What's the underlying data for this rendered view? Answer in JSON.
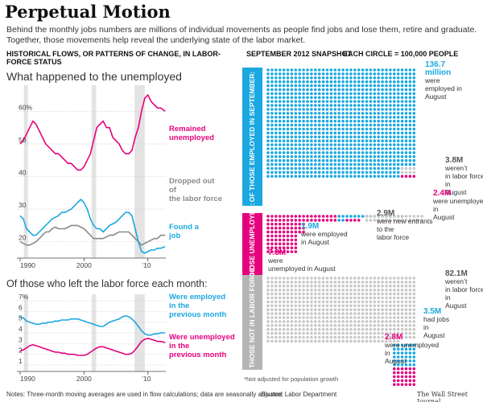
{
  "title": "Perpetual Motion",
  "intro": "Behind the monthly jobs numbers are millions of individual movements as people find jobs and lose them, retire and graduate. Together, those movements help reveal the underlying state of the labor market.",
  "left_header": "HISTORICAL FLOWS, OR PATTERNS OF CHANGE, IN LABOR-FORCE STATUS",
  "right_header": {
    "snapshot": "SEPTEMBER 2012 SNAPSHOT",
    "legend": "EACH CIRCLE = 100,000 PEOPLE"
  },
  "footer": {
    "notes": "Notes: Three-month moving averages are used in flow calculations; data are seasonally adjusted",
    "source": "Source: Labor Department",
    "credit": "The Wall Street Journal"
  },
  "colors": {
    "magenta": "#e5007d",
    "cyan": "#1ba8e0",
    "gray": "#8a8a8a",
    "light_gray": "#c8c8c8",
    "recession_shade": "#e3e3e3"
  },
  "chart_data": [
    {
      "type": "line",
      "title": "What happened to the unemployed",
      "x_ticks": [
        "1990",
        "2000",
        "’10"
      ],
      "y_ticks": [
        "20",
        "30",
        "40",
        "50",
        "60%"
      ],
      "ylim": [
        15,
        67
      ],
      "xlim": [
        1990,
        2012.8
      ],
      "grid": true,
      "recession_shading": [
        [
          1990.6,
          1991.2
        ],
        [
          2001.2,
          2001.9
        ],
        [
          2007.9,
          2009.5
        ]
      ],
      "series": [
        {
          "name": "Remained unemployed",
          "color": "#e5007d",
          "x": [
            1990,
            1990.5,
            1991,
            1991.5,
            1992,
            1992.5,
            1993,
            1993.5,
            1994,
            1994.5,
            1995,
            1995.5,
            1996,
            1996.5,
            1997,
            1997.5,
            1998,
            1998.5,
            1999,
            1999.5,
            2000,
            2000.5,
            2001,
            2001.5,
            2002,
            2002.5,
            2003,
            2003.5,
            2004,
            2004.5,
            2005,
            2005.5,
            2006,
            2006.5,
            2007,
            2007.5,
            2008,
            2008.5,
            2009,
            2009.5,
            2010,
            2010.5,
            2011,
            2011.5,
            2012,
            2012.7
          ],
          "y": [
            50,
            51,
            53,
            55,
            57,
            56,
            54,
            52,
            50,
            49,
            48,
            47,
            47,
            46,
            45,
            44,
            44,
            43,
            42,
            42,
            43,
            45,
            47,
            51,
            55,
            56,
            57,
            55,
            55,
            52,
            51,
            50,
            48,
            47,
            47,
            48,
            52,
            55,
            60,
            64,
            65,
            63,
            62,
            61,
            61,
            60
          ]
        },
        {
          "name": "Dropped out of the labor force",
          "color": "#8a8a8a",
          "x": [
            1990,
            1990.5,
            1991,
            1991.5,
            1992,
            1992.5,
            1993,
            1993.5,
            1994,
            1994.5,
            1995,
            1995.5,
            1996,
            1996.5,
            1997,
            1997.5,
            1998,
            1998.5,
            1999,
            1999.5,
            2000,
            2000.5,
            2001,
            2001.5,
            2002,
            2002.5,
            2003,
            2003.5,
            2004,
            2004.5,
            2005,
            2005.5,
            2006,
            2006.5,
            2007,
            2007.5,
            2008,
            2008.5,
            2009,
            2009.5,
            2010,
            2010.5,
            2011,
            2011.5,
            2012,
            2012.7
          ],
          "y": [
            20,
            19.5,
            19,
            19,
            19.5,
            20,
            21,
            22,
            23,
            23,
            24,
            24.5,
            24,
            24,
            24,
            24.5,
            25,
            25,
            25,
            24.5,
            24,
            23,
            22,
            21,
            21,
            21,
            21,
            21.5,
            22,
            22,
            22.5,
            23,
            23,
            23,
            23,
            22,
            21,
            20,
            19,
            19.5,
            20,
            20.5,
            21,
            21,
            22,
            22
          ]
        },
        {
          "name": "Found a job",
          "color": "#1ba8e0",
          "x": [
            1990,
            1990.5,
            1991,
            1991.5,
            1992,
            1992.5,
            1993,
            1993.5,
            1994,
            1994.5,
            1995,
            1995.5,
            1996,
            1996.5,
            1997,
            1997.5,
            1998,
            1998.5,
            1999,
            1999.5,
            2000,
            2000.5,
            2001,
            2001.5,
            2002,
            2002.5,
            2003,
            2003.5,
            2004,
            2004.5,
            2005,
            2005.5,
            2006,
            2006.5,
            2007,
            2007.5,
            2008,
            2008.5,
            2009,
            2009.5,
            2010,
            2010.5,
            2011,
            2011.5,
            2012,
            2012.7
          ],
          "y": [
            28,
            27,
            24,
            23,
            22,
            22,
            23,
            24,
            25,
            26,
            27,
            27.5,
            28,
            29,
            29,
            29.5,
            30,
            31,
            32,
            33,
            32,
            30,
            27,
            25,
            24,
            24,
            23,
            24,
            25,
            25.5,
            26,
            27,
            28,
            29,
            29,
            28,
            24,
            20,
            17,
            16.5,
            17,
            17.5,
            17.5,
            18,
            18,
            18.5
          ]
        }
      ]
    },
    {
      "type": "line",
      "title": "Of those who left the labor force each month:",
      "x_ticks": [
        "1990",
        "2000",
        "’10"
      ],
      "y_ticks": [
        "1",
        "2",
        "3",
        "4",
        "5",
        "6",
        "7%"
      ],
      "ylim": [
        0.4,
        7.3
      ],
      "xlim": [
        1990,
        2012.8
      ],
      "grid": true,
      "recession_shading": [
        [
          1990.6,
          1991.2
        ],
        [
          2001.2,
          2001.9
        ],
        [
          2007.9,
          2009.5
        ]
      ],
      "series": [
        {
          "name": "Were employed in the previous month",
          "color": "#1ba8e0",
          "x": [
            1990,
            1990.5,
            1991,
            1991.5,
            1992,
            1992.5,
            1993,
            1993.5,
            1994,
            1994.5,
            1995,
            1995.5,
            1996,
            1996.5,
            1997,
            1997.5,
            1998,
            1998.5,
            1999,
            1999.5,
            2000,
            2000.5,
            2001,
            2001.5,
            2002,
            2002.5,
            2003,
            2003.5,
            2004,
            2004.5,
            2005,
            2005.5,
            2006,
            2006.5,
            2007,
            2007.5,
            2008,
            2008.5,
            2009,
            2009.5,
            2010,
            2010.5,
            2011,
            2011.5,
            2012,
            2012.7
          ],
          "y": [
            5.5,
            5.4,
            5.1,
            5.0,
            4.9,
            4.8,
            4.8,
            4.9,
            4.9,
            5.0,
            5.0,
            5.1,
            5.1,
            5.2,
            5.2,
            5.2,
            5.3,
            5.3,
            5.3,
            5.2,
            5.1,
            5.0,
            4.9,
            4.8,
            4.7,
            4.6,
            4.6,
            4.8,
            5.0,
            5.1,
            5.2,
            5.3,
            5.5,
            5.6,
            5.5,
            5.3,
            5.0,
            4.6,
            4.2,
            3.9,
            3.8,
            3.8,
            3.9,
            3.9,
            4.0,
            4.0
          ]
        },
        {
          "name": "Were unemployed in the previous month",
          "color": "#e5007d",
          "x": [
            1990,
            1990.5,
            1991,
            1991.5,
            1992,
            1992.5,
            1993,
            1993.5,
            1994,
            1994.5,
            1995,
            1995.5,
            1996,
            1996.5,
            1997,
            1997.5,
            1998,
            1998.5,
            1999,
            1999.5,
            2000,
            2000.5,
            2001,
            2001.5,
            2002,
            2002.5,
            2003,
            2003.5,
            2004,
            2004.5,
            2005,
            2005.5,
            2006,
            2006.5,
            2007,
            2007.5,
            2008,
            2008.5,
            2009,
            2009.5,
            2010,
            2010.5,
            2011,
            2011.5,
            2012,
            2012.7
          ],
          "y": [
            2.3,
            2.4,
            2.6,
            2.8,
            2.9,
            2.8,
            2.7,
            2.6,
            2.5,
            2.4,
            2.3,
            2.2,
            2.2,
            2.1,
            2.1,
            2.0,
            2.0,
            2.0,
            1.9,
            1.9,
            1.9,
            2.0,
            2.2,
            2.4,
            2.6,
            2.7,
            2.7,
            2.6,
            2.5,
            2.4,
            2.3,
            2.2,
            2.1,
            2.0,
            2.0,
            2.1,
            2.4,
            2.8,
            3.2,
            3.4,
            3.5,
            3.4,
            3.3,
            3.2,
            3.2,
            3.1
          ]
        }
      ]
    },
    {
      "type": "dot-matrix",
      "title": "SEPTEMBER 2012 SNAPSHOT",
      "unit": "EACH CIRCLE = 100,000 PEOPLE",
      "note": "*Not adjusted for population growth",
      "groups": [
        {
          "label": "OF THOSE EMPLOYED IN SEPTEMBER:",
          "label_color": "#1ba8e0",
          "flows": [
            {
              "value": "136.7 million",
              "text": "were employed in August",
              "color": "#1ba8e0"
            },
            {
              "value": "3.8M",
              "text": "weren’t in labor force in August",
              "color": "#c8c8c8"
            },
            {
              "value": "2.4M",
              "text": "were unemployed in August",
              "color": "#e5007d"
            }
          ]
        },
        {
          "label": "OF THOSE UNEMPLOYED:",
          "label_color": "#e5007d",
          "flows": [
            {
              "value": "2.9M",
              "text": "were new entrants to the labor force",
              "color": "#c8c8c8"
            },
            {
              "value": "1.9M",
              "text": "were employed in August",
              "color": "#1ba8e0"
            },
            {
              "value": "7.3M",
              "text": "were unemployed in August",
              "color": "#e5007d"
            }
          ]
        },
        {
          "label": "OF THOSE NOT IN LABOR FORCE:",
          "label_color": "#b5b5b5",
          "flows": [
            {
              "value": "82.1M",
              "text": "weren’t in labor force in August",
              "color": "#c8c8c8"
            },
            {
              "value": "3.5M",
              "text": "had jobs in August",
              "color": "#1ba8e0"
            },
            {
              "value": "2.8M",
              "text": "were unemployed in August",
              "color": "#e5007d"
            }
          ]
        }
      ]
    }
  ]
}
